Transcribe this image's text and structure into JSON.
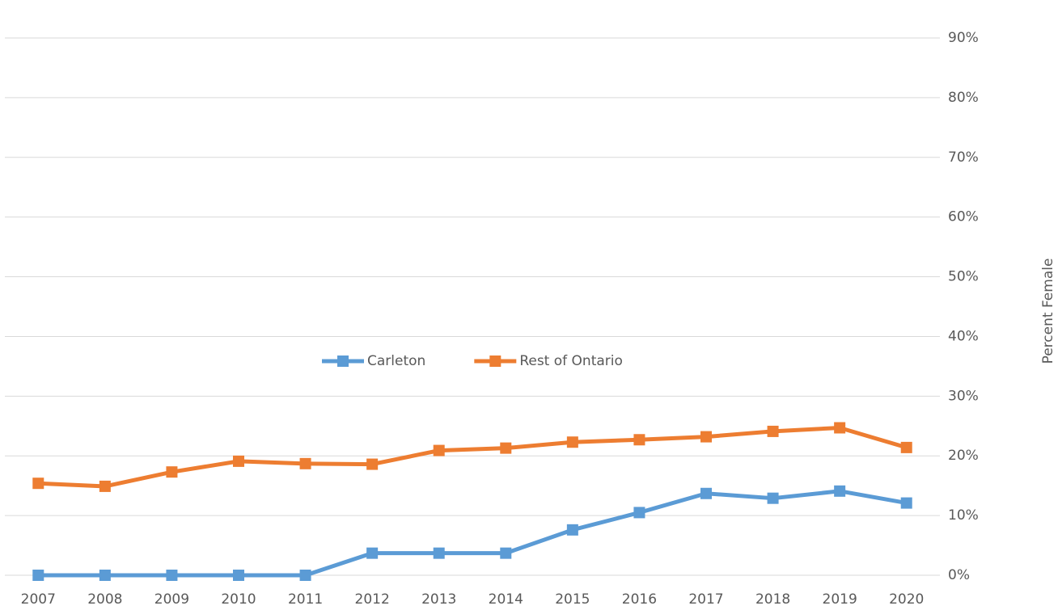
{
  "chart_data": {
    "type": "line",
    "y_label": "Percent Female",
    "categories": [
      "2007",
      "2008",
      "2009",
      "2010",
      "2011",
      "2012",
      "2013",
      "2014",
      "2015",
      "2016",
      "2017",
      "2018",
      "2019",
      "2020"
    ],
    "series": [
      {
        "name": "Carleton",
        "color": "#5b9bd5",
        "values": [
          0,
          0,
          0,
          0,
          0,
          3.7,
          3.7,
          3.7,
          7.6,
          10.5,
          13.7,
          12.9,
          14.1,
          12.1
        ]
      },
      {
        "name": "Rest of Ontario",
        "color": "#ed7d31",
        "values": [
          15.4,
          14.9,
          17.3,
          19.1,
          18.7,
          18.6,
          20.9,
          21.3,
          22.3,
          22.7,
          23.2,
          24.1,
          24.7,
          21.4
        ]
      }
    ],
    "ylim": [
      0,
      90
    ],
    "yticks": [
      {
        "value": 0,
        "label": "0%"
      },
      {
        "value": 10,
        "label": "10%"
      },
      {
        "value": 20,
        "label": "20%"
      },
      {
        "value": 30,
        "label": "30%"
      },
      {
        "value": 40,
        "label": "40%"
      },
      {
        "value": 50,
        "label": "50%"
      },
      {
        "value": 60,
        "label": "60%"
      },
      {
        "value": 70,
        "label": "70%"
      },
      {
        "value": 80,
        "label": "80%"
      },
      {
        "value": 90,
        "label": "90%"
      }
    ],
    "grid": true,
    "legend": "center"
  }
}
